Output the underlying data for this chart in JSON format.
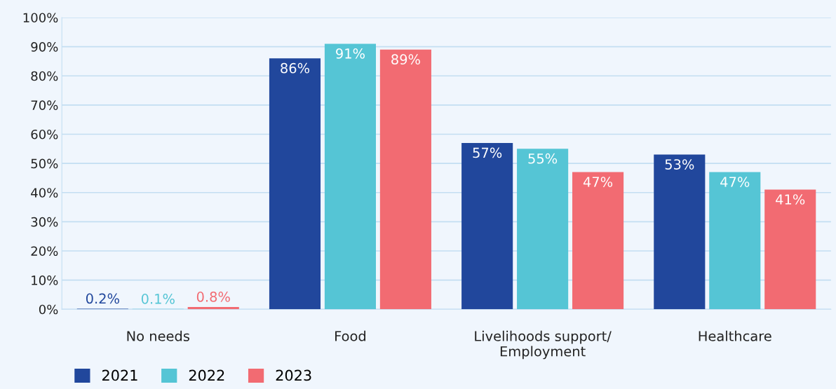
{
  "chart_data": {
    "type": "bar",
    "categories": [
      "No needs",
      "Food",
      "Livelihoods support/\nEmployment",
      "Healthcare"
    ],
    "series": [
      {
        "name": "2021",
        "color": "#21479c",
        "values": [
          0.2,
          86,
          57,
          53
        ],
        "value_labels": [
          "0.2%",
          "86%",
          "57%",
          "53%"
        ]
      },
      {
        "name": "2022",
        "color": "#55c5d5",
        "values": [
          0.1,
          91,
          55,
          47
        ],
        "value_labels": [
          "0.1%",
          "91%",
          "55%",
          "47%"
        ]
      },
      {
        "name": "2023",
        "color": "#f26b72",
        "values": [
          0.8,
          89,
          47,
          41
        ],
        "value_labels": [
          "0.8%",
          "89%",
          "47%",
          "41%"
        ]
      }
    ],
    "ylim": [
      0,
      100
    ],
    "yticks": [
      {
        "value": 0,
        "label": "0%"
      },
      {
        "value": 10,
        "label": "10%"
      },
      {
        "value": 20,
        "label": "20%"
      },
      {
        "value": 30,
        "label": "30%"
      },
      {
        "value": 40,
        "label": "40%"
      },
      {
        "value": 50,
        "label": "50%"
      },
      {
        "value": 60,
        "label": "60%"
      },
      {
        "value": 70,
        "label": "70%"
      },
      {
        "value": 80,
        "label": "80%"
      },
      {
        "value": 90,
        "label": "90%"
      },
      {
        "value": 100,
        "label": "100%"
      }
    ],
    "grid": "y",
    "legend": "bottom left"
  }
}
